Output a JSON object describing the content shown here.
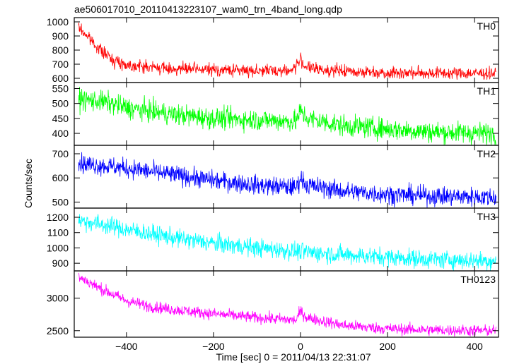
{
  "chart_data": {
    "type": "line",
    "title": "ae506017010_20110413223107_wam0_trn_4band_long.qdp",
    "xlabel": "Time [sec] 0 = 2011/04/13 22:31:07",
    "ylabel": "Counts/sec",
    "xlim": [
      -520,
      455
    ],
    "x_ticks": [
      -400,
      -200,
      0,
      200,
      400
    ],
    "x_range": [
      -510,
      450
    ],
    "noise_seed": 7,
    "panels": [
      {
        "name": "TH0",
        "color": "#ff0000",
        "ylim": [
          570,
          1030
        ],
        "y_ticks": [
          600,
          700,
          800,
          900,
          1000
        ],
        "trend": [
          [
            -510,
            960
          ],
          [
            -490,
            900
          ],
          [
            -460,
            800
          ],
          [
            -430,
            730
          ],
          [
            -400,
            695
          ],
          [
            -350,
            680
          ],
          [
            -300,
            668
          ],
          [
            -200,
            660
          ],
          [
            -100,
            655
          ],
          [
            -20,
            655
          ],
          [
            0,
            730
          ],
          [
            10,
            690
          ],
          [
            30,
            665
          ],
          [
            100,
            650
          ],
          [
            200,
            640
          ],
          [
            300,
            637
          ],
          [
            400,
            635
          ],
          [
            450,
            635
          ]
        ],
        "noise": 22
      },
      {
        "name": "TH1",
        "color": "#00ff00",
        "ylim": [
          360,
          570
        ],
        "y_ticks": [
          400,
          450,
          500,
          550
        ],
        "trend": [
          [
            -510,
            515
          ],
          [
            -450,
            505
          ],
          [
            -400,
            485
          ],
          [
            -300,
            465
          ],
          [
            -200,
            450
          ],
          [
            -100,
            445
          ],
          [
            -10,
            440
          ],
          [
            0,
            475
          ],
          [
            15,
            450
          ],
          [
            100,
            425
          ],
          [
            200,
            415
          ],
          [
            300,
            405
          ],
          [
            450,
            400
          ]
        ],
        "noise": 18
      },
      {
        "name": "TH2",
        "color": "#0000ff",
        "ylim": [
          475,
          735
        ],
        "y_ticks": [
          500,
          600,
          700
        ],
        "trend": [
          [
            -510,
            660
          ],
          [
            -450,
            650
          ],
          [
            -400,
            640
          ],
          [
            -300,
            615
          ],
          [
            -200,
            590
          ],
          [
            -100,
            570
          ],
          [
            -10,
            560
          ],
          [
            0,
            600
          ],
          [
            15,
            570
          ],
          [
            100,
            545
          ],
          [
            200,
            532
          ],
          [
            300,
            525
          ],
          [
            450,
            520
          ]
        ],
        "noise": 20
      },
      {
        "name": "TH3",
        "color": "#00ffff",
        "ylim": [
          850,
          1260
        ],
        "y_ticks": [
          900,
          1000,
          1100,
          1200
        ],
        "trend": [
          [
            -510,
            1180
          ],
          [
            -450,
            1150
          ],
          [
            -400,
            1120
          ],
          [
            -300,
            1070
          ],
          [
            -200,
            1030
          ],
          [
            -100,
            1000
          ],
          [
            0,
            975
          ],
          [
            100,
            955
          ],
          [
            200,
            940
          ],
          [
            300,
            925
          ],
          [
            450,
            915
          ]
        ],
        "noise": 30
      },
      {
        "name": "TH0123",
        "color": "#ff00ff",
        "ylim": [
          2400,
          3420
        ],
        "y_ticks": [
          2500,
          3000
        ],
        "trend": [
          [
            -510,
            3330
          ],
          [
            -460,
            3150
          ],
          [
            -400,
            2960
          ],
          [
            -350,
            2880
          ],
          [
            -300,
            2830
          ],
          [
            -200,
            2760
          ],
          [
            -100,
            2700
          ],
          [
            -10,
            2660
          ],
          [
            0,
            2800
          ],
          [
            15,
            2700
          ],
          [
            100,
            2580
          ],
          [
            200,
            2530
          ],
          [
            300,
            2510
          ],
          [
            450,
            2500
          ]
        ],
        "noise": 45
      }
    ]
  }
}
